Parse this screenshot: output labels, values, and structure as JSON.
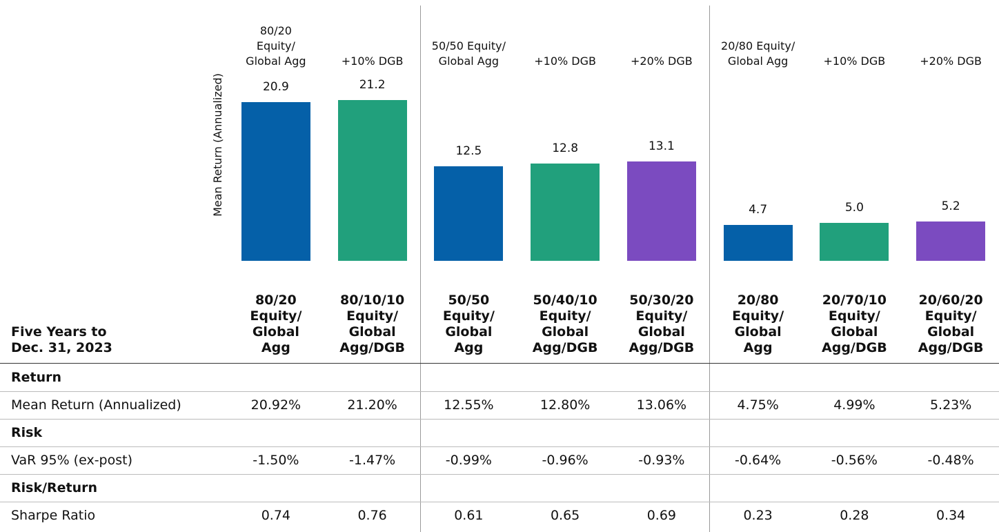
{
  "chart_data": {
    "type": "bar",
    "y_label": "Mean Return (Annualized)",
    "categories": [
      "80/20\nEquity/\nGlobal Agg",
      "+10% DGB",
      "50/50 Equity/\nGlobal Agg",
      "+10% DGB",
      "+20% DGB",
      "20/80 Equity/\nGlobal Agg",
      "+10% DGB",
      "+20% DGB"
    ],
    "values": [
      20.9,
      21.2,
      12.5,
      12.8,
      13.1,
      4.7,
      5.0,
      5.2
    ],
    "value_labels": [
      "20.9",
      "21.2",
      "12.5",
      "12.8",
      "13.1",
      "4.7",
      "5.0",
      "5.2"
    ],
    "colors": [
      "#0560a8",
      "#21a07c",
      "#0560a8",
      "#21a07c",
      "#7b4bc0",
      "#0560a8",
      "#21a07c",
      "#7b4bc0"
    ],
    "ylim": [
      0,
      25
    ]
  },
  "table": {
    "corner": "Five Years to\nDec. 31, 2023",
    "columns": [
      "80/20\nEquity/\nGlobal\nAgg",
      "80/10/10\nEquity/\nGlobal\nAgg/DGB",
      "50/50\nEquity/\nGlobal\nAgg",
      "50/40/10\nEquity/\nGlobal\nAgg/DGB",
      "50/30/20\nEquity/\nGlobal\nAgg/DGB",
      "20/80\nEquity/\nGlobal\nAgg",
      "20/70/10\nEquity/\nGlobal\nAgg/DGB",
      "20/60/20\nEquity/\nGlobal\nAgg/DGB"
    ],
    "sections": [
      {
        "title": "Return",
        "rows": [
          [
            "Mean Return (Annualized)",
            "20.92%",
            "21.20%",
            "12.55%",
            "12.80%",
            "13.06%",
            "4.75%",
            "4.99%",
            "5.23%"
          ]
        ]
      },
      {
        "title": "Risk",
        "rows": [
          [
            "VaR 95% (ex-post)",
            "-1.50%",
            "-1.47%",
            "-0.99%",
            "-0.96%",
            "-0.93%",
            "-0.64%",
            "-0.56%",
            "-0.48%"
          ]
        ]
      },
      {
        "title": "Risk/Return",
        "rows": [
          [
            "Sharpe Ratio",
            "0.74",
            "0.76",
            "0.61",
            "0.65",
            "0.69",
            "0.23",
            "0.28",
            "0.34"
          ]
        ]
      }
    ]
  }
}
